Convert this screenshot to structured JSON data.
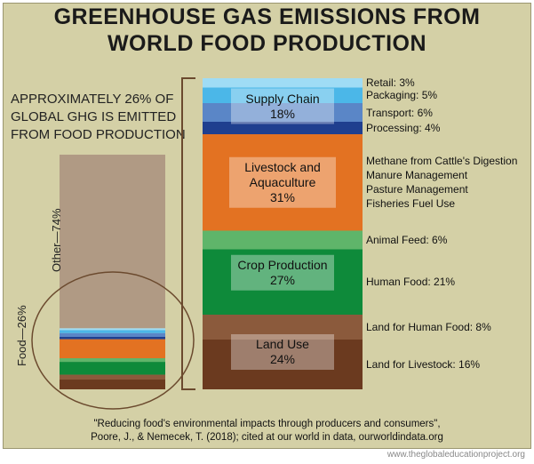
{
  "title_lines": [
    "GREENHOUSE GAS EMISSIONS FROM",
    "WORLD FOOD PRODUCTION"
  ],
  "callout_lines": [
    "APPROXIMATELY 26% OF",
    "GLOBAL GHG IS EMITTED",
    "FROM FOOD PRODUCTION"
  ],
  "labels": {
    "other": "Other—74%",
    "food": "Food—26%"
  },
  "source_lines": [
    "\"Reducing food's environmental impacts through producers and consumers\",",
    "Poore, J., & Nemecek, T. (2018); cited at our world in data, ourworldindata.org"
  ],
  "credit": "www.theglobaleducationproject.org",
  "chart_data": [
    {
      "type": "bar",
      "title": "",
      "stacked": true,
      "categories": [
        "Global GHG"
      ],
      "series": [
        {
          "name": "Food",
          "value": 26,
          "color": "#8b5a3c"
        },
        {
          "name": "Other",
          "value": 74,
          "color": "#b09a84"
        }
      ]
    },
    {
      "type": "bar",
      "stacked": true,
      "title": "",
      "groups": [
        {
          "name": "Supply Chain",
          "value": 18,
          "label": "Supply Chain",
          "value_label": "18%",
          "parts": [
            {
              "name": "Retail",
              "value": 3,
              "label": "Retail: 3%",
              "color": "#9fdcf5"
            },
            {
              "name": "Packaging",
              "value": 5,
              "label": "Packaging: 5%",
              "color": "#4bb7e8"
            },
            {
              "name": "Transport",
              "value": 6,
              "label": "Transport: 6%",
              "color": "#5a86c7"
            },
            {
              "name": "Processing",
              "value": 4,
              "label": "Processing: 4%",
              "color": "#1f3f8f"
            }
          ]
        },
        {
          "name": "Livestock and Aquaculture",
          "value": 31,
          "label": "Livestock and Aquaculture",
          "value_label": "31%",
          "color": "#e37222",
          "notes": [
            "Methane from Cattle's Digestion",
            "Manure Management",
            "Pasture Management",
            "Fisheries Fuel Use"
          ]
        },
        {
          "name": "Crop Production",
          "value": 27,
          "label": "Crop Production",
          "value_label": "27%",
          "parts": [
            {
              "name": "Animal Feed",
              "value": 6,
              "label": "Animal Feed: 6%",
              "color": "#5fb56a"
            },
            {
              "name": "Human Food",
              "value": 21,
              "label": "Human Food: 21%",
              "color": "#0e8a3a"
            }
          ]
        },
        {
          "name": "Land Use",
          "value": 24,
          "label": "Land Use",
          "value_label": "24%",
          "parts": [
            {
              "name": "Land for Human Food",
              "value": 8,
              "label": "Land for Human Food: 8%",
              "color": "#8b5a3c"
            },
            {
              "name": "Land for Livestock",
              "value": 16,
              "label": "Land for Livestock: 16%",
              "color": "#6b3a1f"
            }
          ]
        }
      ]
    }
  ]
}
